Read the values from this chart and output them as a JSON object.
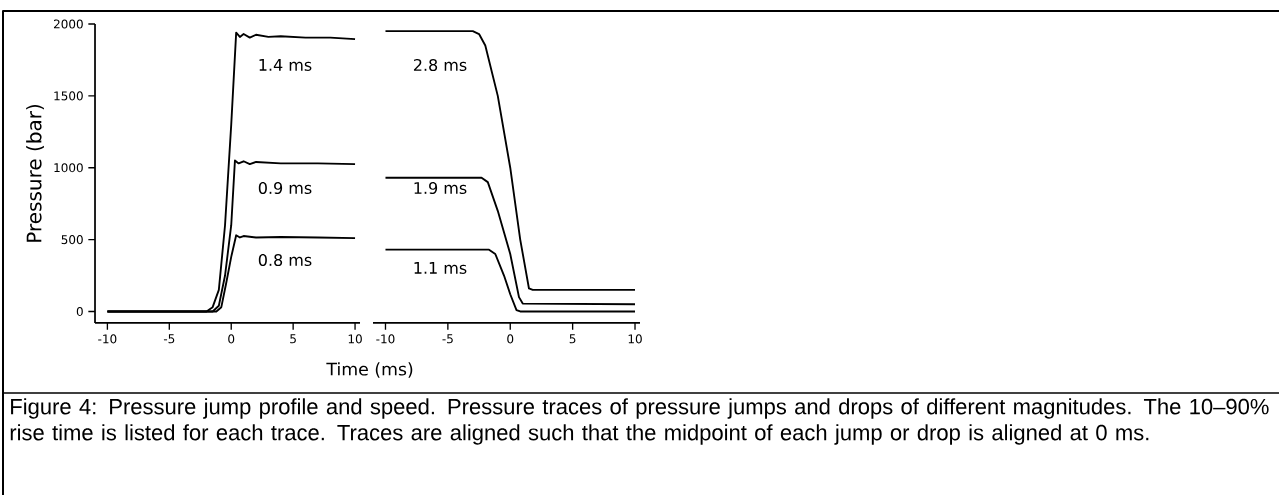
{
  "chart_data": [
    {
      "type": "line",
      "ylabel": "Pressure (bar)",
      "xlabel": "Time (ms)",
      "xlim": [
        -11,
        10.4
      ],
      "ylim": [
        -80,
        2000
      ],
      "xticks": [
        -10,
        -5,
        0,
        5,
        10
      ],
      "yticks": [
        0,
        500,
        1000,
        1500,
        2000
      ],
      "marker": "none",
      "line_style": "solid",
      "series": [
        {
          "color": "#000000",
          "x": [
            -10,
            -2,
            -1.5,
            -1,
            -0.5,
            0,
            0.4,
            0.7,
            1,
            1.5,
            2,
            3,
            4,
            6,
            8,
            10
          ],
          "values": [
            0,
            0,
            30,
            150,
            600,
            1300,
            1940,
            1910,
            1930,
            1905,
            1925,
            1910,
            1915,
            1905,
            1905,
            1895
          ]
        },
        {
          "color": "#000000",
          "x": [
            -10,
            -1.5,
            -1,
            -0.5,
            0,
            0.3,
            0.6,
            1,
            1.5,
            2,
            4,
            7,
            10
          ],
          "values": [
            0,
            0,
            40,
            250,
            600,
            1050,
            1030,
            1045,
            1025,
            1040,
            1030,
            1030,
            1025
          ]
        },
        {
          "color": "#000000",
          "x": [
            -10,
            -1.2,
            -0.8,
            -0.4,
            0,
            0.4,
            0.7,
            1,
            2,
            4,
            7,
            10
          ],
          "values": [
            0,
            0,
            30,
            200,
            380,
            530,
            515,
            525,
            515,
            518,
            515,
            510
          ]
        }
      ],
      "annotations": [
        "1.4 ms",
        "0.9 ms",
        "0.8 ms",
        "Figure 4: Pressure jump profile and speed. Pressure traces of pressure jumps and drops of different magnitudes. The 10–90% rise time is listed for each trace. Traces are aligned such that the midpoint of each jump or drop is aligned at 0 ms."
      ]
    },
    {
      "type": "line",
      "xlim": [
        -11,
        10.4
      ],
      "ylim": [
        -80,
        2000
      ],
      "xticks": [
        -10,
        -5,
        0,
        5,
        10
      ],
      "tick_labels": "x",
      "marker": "none",
      "line_style": "solid",
      "series": [
        {
          "color": "#000000",
          "x": [
            -10,
            -3,
            -2.5,
            -2,
            -1,
            0,
            0.8,
            1.5,
            1.8,
            10
          ],
          "values": [
            1950,
            1950,
            1930,
            1850,
            1500,
            1000,
            500,
            160,
            150,
            150
          ]
        },
        {
          "color": "#000000",
          "x": [
            -10,
            -2.3,
            -1.8,
            -1,
            0,
            0.7,
            1,
            10
          ],
          "values": [
            930,
            930,
            900,
            700,
            400,
            100,
            55,
            50
          ]
        },
        {
          "color": "#000000",
          "x": [
            -10,
            -1.7,
            -1.2,
            -0.5,
            0,
            0.5,
            0.8,
            10
          ],
          "values": [
            430,
            430,
            400,
            250,
            120,
            10,
            0,
            0
          ]
        }
      ],
      "annotations": [
        "2.8 ms",
        "1.9 ms",
        "1.1 ms"
      ]
    }
  ]
}
